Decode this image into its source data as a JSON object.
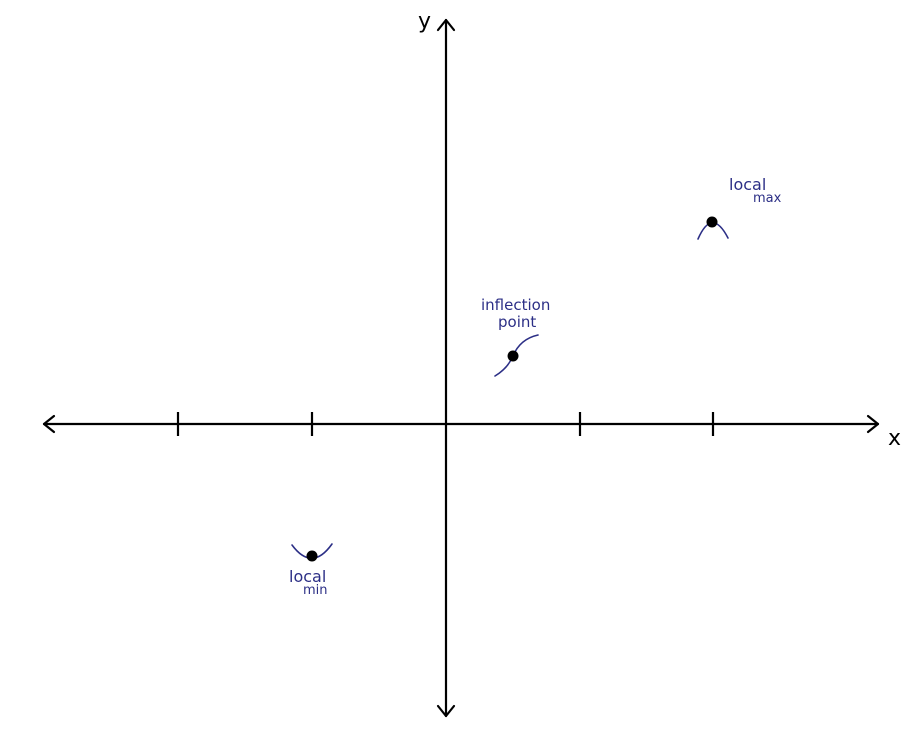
{
  "axes": {
    "x_label": "x",
    "y_label": "y"
  },
  "annotations": {
    "local_max_line1": "local",
    "local_max_line2": "max",
    "inflection_line1": "inflection",
    "inflection_line2": "point",
    "local_min_line1": "local",
    "local_min_line2": "min"
  },
  "colors": {
    "axis": "#000000",
    "annotation_ink": "#2c2f86"
  }
}
